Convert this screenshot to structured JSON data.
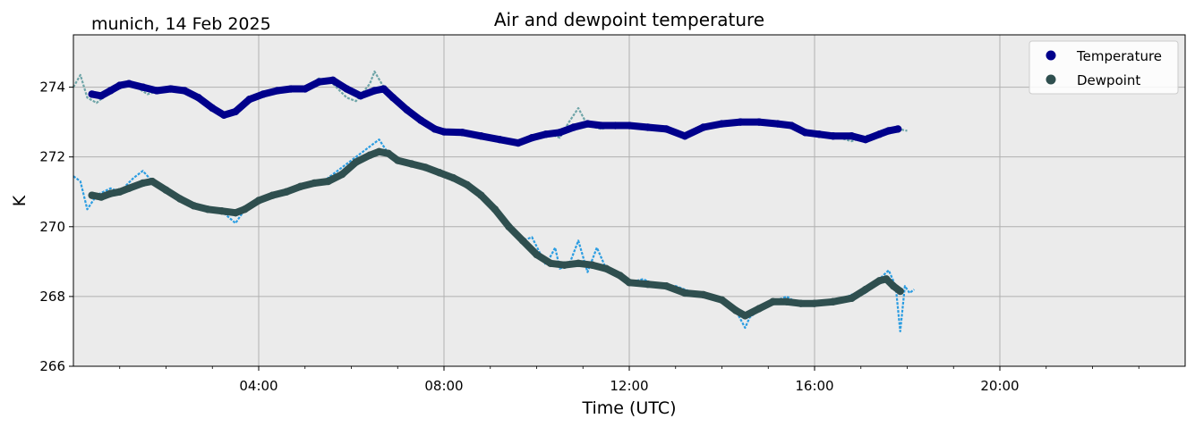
{
  "chart_data": {
    "type": "line",
    "title": "Air and dewpoint temperature",
    "subtitle": "munich, 14 Feb 2025",
    "xlabel": "Time (UTC)",
    "ylabel": "K",
    "x_unit": "hours UTC",
    "xlim": [
      0,
      24
    ],
    "ylim": [
      266,
      275.5
    ],
    "x_ticks": [
      {
        "value": 4,
        "label": "04:00"
      },
      {
        "value": 8,
        "label": "08:00"
      },
      {
        "value": 12,
        "label": "12:00"
      },
      {
        "value": 16,
        "label": "16:00"
      },
      {
        "value": 20,
        "label": "20:00"
      }
    ],
    "y_ticks": [
      266,
      268,
      270,
      272,
      274
    ],
    "grid": true,
    "background": "#ebebeb",
    "legend": {
      "position": "top-right",
      "entries": [
        {
          "label": "Temperature",
          "color": "#00008b"
        },
        {
          "label": "Dewpoint",
          "color": "#2f4f4f"
        }
      ]
    },
    "series": [
      {
        "name": "Temperature",
        "style": "raw",
        "color": "#6fa5a8",
        "x": [
          0.0,
          0.15,
          0.3,
          0.5,
          0.8,
          1.0,
          1.3,
          1.6,
          2.0,
          2.4,
          2.7,
          3.0,
          3.25,
          3.5,
          3.8,
          4.0,
          4.4,
          4.8,
          5.0,
          5.3,
          5.6,
          5.9,
          6.1,
          6.4,
          6.5,
          6.7,
          6.9,
          7.2,
          7.6,
          8.0,
          8.4,
          8.8,
          9.2,
          9.6,
          9.9,
          10.2,
          10.5,
          10.7,
          10.9,
          11.1,
          11.4,
          11.7,
          12.0,
          12.4,
          12.8,
          13.2,
          13.6,
          14.0,
          14.4,
          14.8,
          15.2,
          15.5,
          15.8,
          16.1,
          16.4,
          16.8,
          17.1,
          17.5,
          17.8,
          18.0
        ],
        "y": [
          274.0,
          274.35,
          273.7,
          273.55,
          273.9,
          274.1,
          274.05,
          273.8,
          273.95,
          273.9,
          273.65,
          273.35,
          273.2,
          273.35,
          273.7,
          273.8,
          273.9,
          274.0,
          273.95,
          274.25,
          274.1,
          273.7,
          273.6,
          274.1,
          274.45,
          274.0,
          273.7,
          273.3,
          273.0,
          272.7,
          272.7,
          272.6,
          272.5,
          272.35,
          272.6,
          272.7,
          272.55,
          273.0,
          273.4,
          272.9,
          272.8,
          272.9,
          272.9,
          272.85,
          272.8,
          272.55,
          272.9,
          272.95,
          273.0,
          273.0,
          272.95,
          272.9,
          272.7,
          272.65,
          272.6,
          272.45,
          272.6,
          272.7,
          272.8,
          272.75
        ]
      },
      {
        "name": "Temperature",
        "style": "smoothed",
        "color": "#00008b",
        "x": [
          0.4,
          0.6,
          0.8,
          1.0,
          1.2,
          1.5,
          1.8,
          2.1,
          2.4,
          2.7,
          3.0,
          3.25,
          3.5,
          3.8,
          4.1,
          4.4,
          4.7,
          5.0,
          5.3,
          5.6,
          5.9,
          6.2,
          6.5,
          6.7,
          6.9,
          7.2,
          7.5,
          7.8,
          8.0,
          8.4,
          8.8,
          9.2,
          9.6,
          9.9,
          10.2,
          10.5,
          10.8,
          11.1,
          11.4,
          11.7,
          12.0,
          12.4,
          12.8,
          13.2,
          13.6,
          14.0,
          14.4,
          14.8,
          15.2,
          15.5,
          15.8,
          16.1,
          16.4,
          16.8,
          17.1,
          17.4,
          17.6,
          17.8
        ],
        "y": [
          273.8,
          273.75,
          273.9,
          274.05,
          274.1,
          274.0,
          273.9,
          273.95,
          273.9,
          273.7,
          273.4,
          273.2,
          273.3,
          273.65,
          273.8,
          273.9,
          273.95,
          273.95,
          274.15,
          274.2,
          273.95,
          273.75,
          273.9,
          273.95,
          273.7,
          273.35,
          273.05,
          272.8,
          272.72,
          272.7,
          272.6,
          272.5,
          272.4,
          272.55,
          272.65,
          272.7,
          272.85,
          272.95,
          272.9,
          272.9,
          272.9,
          272.85,
          272.8,
          272.6,
          272.85,
          272.95,
          273.0,
          273.0,
          272.95,
          272.9,
          272.7,
          272.65,
          272.6,
          272.6,
          272.5,
          272.65,
          272.75,
          272.8
        ]
      },
      {
        "name": "Dewpoint",
        "style": "raw",
        "color": "#2b9de2",
        "x": [
          0.0,
          0.15,
          0.3,
          0.5,
          0.8,
          1.0,
          1.3,
          1.5,
          1.7,
          2.0,
          2.4,
          2.8,
          3.2,
          3.5,
          3.7,
          4.0,
          4.4,
          4.8,
          5.0,
          5.4,
          5.8,
          6.1,
          6.4,
          6.6,
          6.8,
          7.0,
          7.3,
          7.6,
          7.9,
          8.2,
          8.5,
          8.8,
          9.1,
          9.4,
          9.7,
          9.9,
          10.2,
          10.4,
          10.5,
          10.7,
          10.9,
          11.1,
          11.3,
          11.5,
          11.8,
          12.0,
          12.3,
          12.6,
          13.0,
          13.4,
          13.8,
          14.0,
          14.3,
          14.5,
          14.6,
          14.8,
          15.1,
          15.4,
          15.7,
          16.0,
          16.4,
          16.8,
          17.1,
          17.4,
          17.6,
          17.75,
          17.85,
          17.95,
          18.05,
          18.15
        ],
        "y": [
          271.45,
          271.3,
          270.5,
          270.9,
          271.1,
          271.0,
          271.4,
          271.6,
          271.3,
          271.0,
          270.7,
          270.5,
          270.45,
          270.1,
          270.5,
          270.8,
          271.0,
          271.1,
          271.15,
          271.3,
          271.7,
          272.0,
          272.3,
          272.5,
          272.1,
          271.9,
          271.8,
          271.7,
          271.6,
          271.4,
          271.2,
          271.0,
          270.6,
          270.0,
          269.6,
          269.7,
          268.9,
          269.4,
          268.8,
          268.9,
          269.6,
          268.7,
          269.4,
          268.8,
          268.6,
          268.4,
          268.5,
          268.3,
          268.3,
          268.1,
          268.0,
          267.9,
          267.6,
          267.1,
          267.4,
          267.6,
          267.85,
          268.0,
          267.75,
          267.8,
          267.8,
          268.05,
          268.1,
          268.5,
          268.75,
          268.3,
          267.0,
          268.3,
          268.1,
          268.2
        ]
      },
      {
        "name": "Dewpoint",
        "style": "smoothed",
        "color": "#2f4f4f",
        "x": [
          0.4,
          0.6,
          0.8,
          1.0,
          1.2,
          1.5,
          1.7,
          2.0,
          2.3,
          2.6,
          2.9,
          3.2,
          3.5,
          3.7,
          4.0,
          4.3,
          4.6,
          4.9,
          5.2,
          5.5,
          5.8,
          6.1,
          6.4,
          6.6,
          6.8,
          7.0,
          7.3,
          7.6,
          7.9,
          8.2,
          8.5,
          8.8,
          9.1,
          9.4,
          9.7,
          10.0,
          10.3,
          10.6,
          10.9,
          11.2,
          11.5,
          11.8,
          12.0,
          12.4,
          12.8,
          13.2,
          13.6,
          14.0,
          14.3,
          14.5,
          14.8,
          15.1,
          15.4,
          15.7,
          16.0,
          16.4,
          16.8,
          17.1,
          17.4,
          17.55,
          17.7,
          17.85
        ],
        "y": [
          270.9,
          270.85,
          270.95,
          271.0,
          271.1,
          271.25,
          271.3,
          271.05,
          270.8,
          270.6,
          270.5,
          270.45,
          270.4,
          270.5,
          270.75,
          270.9,
          271.0,
          271.15,
          271.25,
          271.3,
          271.5,
          271.85,
          272.05,
          272.15,
          272.1,
          271.9,
          271.8,
          271.7,
          271.55,
          271.4,
          271.2,
          270.9,
          270.5,
          270.0,
          269.6,
          269.2,
          268.95,
          268.9,
          268.95,
          268.9,
          268.8,
          268.6,
          268.4,
          268.35,
          268.3,
          268.1,
          268.05,
          267.9,
          267.6,
          267.45,
          267.65,
          267.85,
          267.85,
          267.8,
          267.8,
          267.85,
          267.95,
          268.2,
          268.45,
          268.5,
          268.3,
          268.15
        ]
      }
    ]
  }
}
